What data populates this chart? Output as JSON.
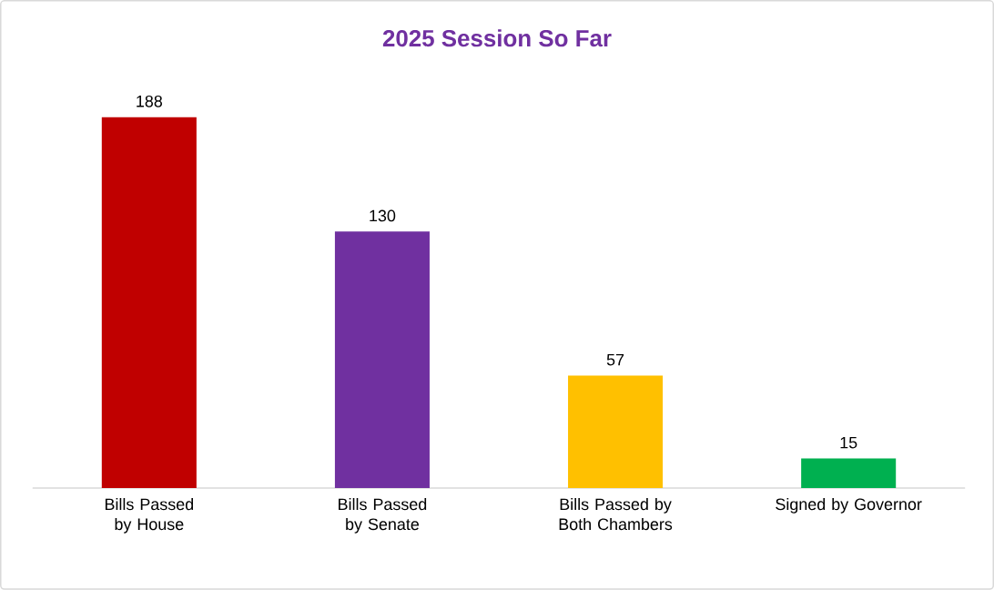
{
  "chart_data": {
    "type": "bar",
    "title": "2025 Session So Far",
    "categories": [
      "Bills Passed by House",
      "Bills Passed by Senate",
      "Bills Passed by Both Chambers",
      "Signed by Governor"
    ],
    "values": [
      188,
      130,
      57,
      15
    ],
    "colors": [
      "#c00000",
      "#7030a0",
      "#ffc000",
      "#00b050"
    ],
    "data_labels": true
  }
}
